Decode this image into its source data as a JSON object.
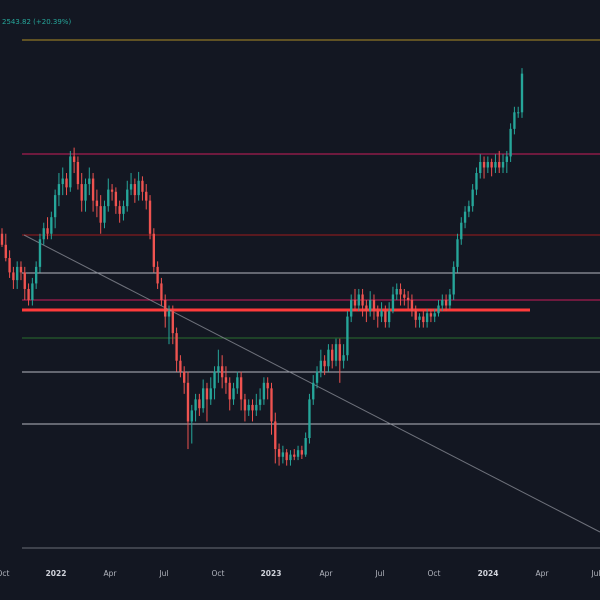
{
  "header": {
    "price_change": "2543.82 (+20.39%)",
    "color": "#26a69a"
  },
  "colors": {
    "background": "#131722",
    "up": "#26a69a",
    "down": "#ef5350",
    "axis_text": "#b2b5be",
    "grid": "#1e222d"
  },
  "chart_data": {
    "type": "candlestick",
    "title": "",
    "xlabel": "",
    "ylabel": "",
    "x_ticks": [
      "Oct",
      "2022",
      "Apr",
      "Jul",
      "Oct",
      "2023",
      "Apr",
      "Jul",
      "Oct",
      "2024",
      "Apr",
      "Jul"
    ],
    "grid": false,
    "horizontal_lines": [
      {
        "name": "level-1",
        "color": "#c9a227"
      },
      {
        "name": "level-2",
        "color": "#e91e63"
      },
      {
        "name": "level-3",
        "color": "#b71c1c"
      },
      {
        "name": "level-4",
        "color": "#d1d4dc"
      },
      {
        "name": "level-5",
        "color": "#e91e63"
      },
      {
        "name": "level-6-support-resistance",
        "color": "#ff3b3b"
      },
      {
        "name": "level-7",
        "color": "#2e7d32"
      },
      {
        "name": "level-8",
        "color": "#d1d4dc"
      },
      {
        "name": "level-9",
        "color": "#d1d4dc"
      },
      {
        "name": "level-10",
        "color": "#787b86"
      }
    ],
    "trend_line": {
      "name": "descending-trend-line",
      "color": "#9598a1"
    },
    "candles": [
      [
        300,
        290,
        305,
        288
      ],
      [
        290,
        278,
        300,
        275
      ],
      [
        278,
        265,
        285,
        260
      ],
      [
        265,
        258,
        270,
        250
      ],
      [
        258,
        270,
        275,
        250
      ],
      [
        270,
        265,
        275,
        258
      ],
      [
        265,
        250,
        270,
        240
      ],
      [
        250,
        240,
        255,
        235
      ],
      [
        240,
        255,
        260,
        235
      ],
      [
        255,
        270,
        275,
        250
      ],
      [
        270,
        295,
        300,
        265
      ],
      [
        295,
        305,
        310,
        290
      ],
      [
        305,
        300,
        315,
        295
      ],
      [
        300,
        315,
        320,
        295
      ],
      [
        315,
        335,
        340,
        305
      ],
      [
        335,
        345,
        355,
        325
      ],
      [
        345,
        350,
        360,
        335
      ],
      [
        350,
        342,
        355,
        335
      ],
      [
        342,
        370,
        375,
        338
      ],
      [
        370,
        365,
        378,
        355
      ],
      [
        365,
        345,
        370,
        340
      ],
      [
        345,
        330,
        355,
        320
      ],
      [
        330,
        345,
        350,
        320
      ],
      [
        345,
        350,
        360,
        335
      ],
      [
        350,
        330,
        355,
        320
      ],
      [
        330,
        325,
        340,
        315
      ],
      [
        325,
        310,
        335,
        300
      ],
      [
        310,
        325,
        330,
        305
      ],
      [
        325,
        340,
        350,
        320
      ],
      [
        340,
        338,
        345,
        330
      ],
      [
        338,
        325,
        342,
        318
      ],
      [
        325,
        318,
        330,
        310
      ],
      [
        318,
        325,
        330,
        312
      ],
      [
        325,
        340,
        348,
        320
      ],
      [
        340,
        345,
        355,
        335
      ],
      [
        345,
        335,
        350,
        328
      ],
      [
        335,
        348,
        356,
        330
      ],
      [
        348,
        338,
        352,
        330
      ],
      [
        338,
        330,
        345,
        322
      ],
      [
        330,
        300,
        335,
        295
      ],
      [
        300,
        270,
        305,
        265
      ],
      [
        270,
        255,
        275,
        250
      ],
      [
        255,
        240,
        260,
        235
      ],
      [
        240,
        225,
        245,
        215
      ],
      [
        225,
        230,
        235,
        200
      ],
      [
        230,
        210,
        235,
        200
      ],
      [
        210,
        185,
        215,
        175
      ],
      [
        185,
        175,
        190,
        170
      ],
      [
        175,
        165,
        180,
        155
      ],
      [
        165,
        130,
        175,
        105
      ],
      [
        130,
        140,
        145,
        110
      ],
      [
        140,
        150,
        155,
        130
      ],
      [
        150,
        142,
        155,
        135
      ],
      [
        142,
        160,
        168,
        138
      ],
      [
        160,
        150,
        165,
        130
      ],
      [
        150,
        160,
        170,
        145
      ],
      [
        160,
        175,
        180,
        150
      ],
      [
        175,
        180,
        195,
        165
      ],
      [
        180,
        170,
        190,
        160
      ],
      [
        170,
        165,
        180,
        155
      ],
      [
        165,
        150,
        170,
        140
      ],
      [
        150,
        160,
        165,
        145
      ],
      [
        160,
        170,
        175,
        155
      ],
      [
        170,
        150,
        175,
        140
      ],
      [
        150,
        140,
        155,
        130
      ],
      [
        140,
        145,
        150,
        135
      ],
      [
        145,
        140,
        150,
        130
      ],
      [
        140,
        145,
        155,
        135
      ],
      [
        145,
        150,
        160,
        140
      ],
      [
        150,
        165,
        170,
        145
      ],
      [
        165,
        160,
        170,
        150
      ],
      [
        160,
        130,
        165,
        118
      ],
      [
        130,
        105,
        138,
        92
      ],
      [
        105,
        98,
        110,
        90
      ],
      [
        98,
        102,
        108,
        92
      ],
      [
        102,
        95,
        105,
        90
      ],
      [
        95,
        100,
        104,
        90
      ],
      [
        100,
        98,
        105,
        95
      ],
      [
        98,
        104,
        108,
        95
      ],
      [
        104,
        100,
        108,
        96
      ],
      [
        100,
        115,
        120,
        98
      ],
      [
        115,
        150,
        155,
        110
      ],
      [
        150,
        165,
        172,
        145
      ],
      [
        165,
        175,
        180,
        160
      ],
      [
        175,
        185,
        195,
        170
      ],
      [
        185,
        180,
        190,
        172
      ],
      [
        180,
        195,
        200,
        175
      ],
      [
        195,
        185,
        200,
        178
      ],
      [
        185,
        200,
        205,
        180
      ],
      [
        200,
        185,
        205,
        165
      ],
      [
        185,
        190,
        200,
        178
      ],
      [
        190,
        225,
        230,
        185
      ],
      [
        225,
        240,
        245,
        220
      ],
      [
        240,
        235,
        250,
        230
      ],
      [
        235,
        245,
        250,
        230
      ],
      [
        245,
        235,
        250,
        225
      ],
      [
        235,
        230,
        240,
        220
      ],
      [
        230,
        240,
        248,
        225
      ],
      [
        240,
        230,
        245,
        222
      ],
      [
        230,
        225,
        235,
        215
      ],
      [
        225,
        230,
        238,
        220
      ],
      [
        230,
        220,
        235,
        215
      ],
      [
        220,
        230,
        238,
        215
      ],
      [
        230,
        245,
        252,
        228
      ],
      [
        245,
        250,
        255,
        240
      ],
      [
        250,
        245,
        255,
        235
      ],
      [
        245,
        242,
        250,
        235
      ],
      [
        242,
        240,
        248,
        232
      ],
      [
        240,
        230,
        245,
        225
      ],
      [
        230,
        222,
        235,
        215
      ],
      [
        222,
        225,
        228,
        215
      ],
      [
        225,
        220,
        230,
        215
      ],
      [
        220,
        228,
        232,
        215
      ],
      [
        228,
        225,
        232,
        220
      ],
      [
        225,
        228,
        232,
        220
      ],
      [
        228,
        235,
        240,
        225
      ],
      [
        235,
        240,
        245,
        230
      ],
      [
        240,
        235,
        245,
        230
      ],
      [
        235,
        245,
        250,
        232
      ],
      [
        245,
        270,
        275,
        240
      ],
      [
        270,
        295,
        300,
        265
      ],
      [
        295,
        310,
        315,
        290
      ],
      [
        310,
        320,
        325,
        305
      ],
      [
        320,
        325,
        330,
        315
      ],
      [
        325,
        340,
        345,
        320
      ],
      [
        340,
        355,
        360,
        335
      ],
      [
        355,
        365,
        372,
        350
      ],
      [
        365,
        360,
        370,
        350
      ],
      [
        360,
        365,
        370,
        355
      ],
      [
        365,
        360,
        368,
        352
      ],
      [
        360,
        365,
        372,
        355
      ],
      [
        365,
        360,
        375,
        355
      ],
      [
        360,
        365,
        372,
        355
      ],
      [
        365,
        370,
        375,
        355
      ],
      [
        370,
        395,
        400,
        365
      ],
      [
        395,
        410,
        415,
        390
      ],
      [
        410,
        410,
        415,
        405
      ],
      [
        410,
        445,
        450,
        405
      ]
    ]
  }
}
